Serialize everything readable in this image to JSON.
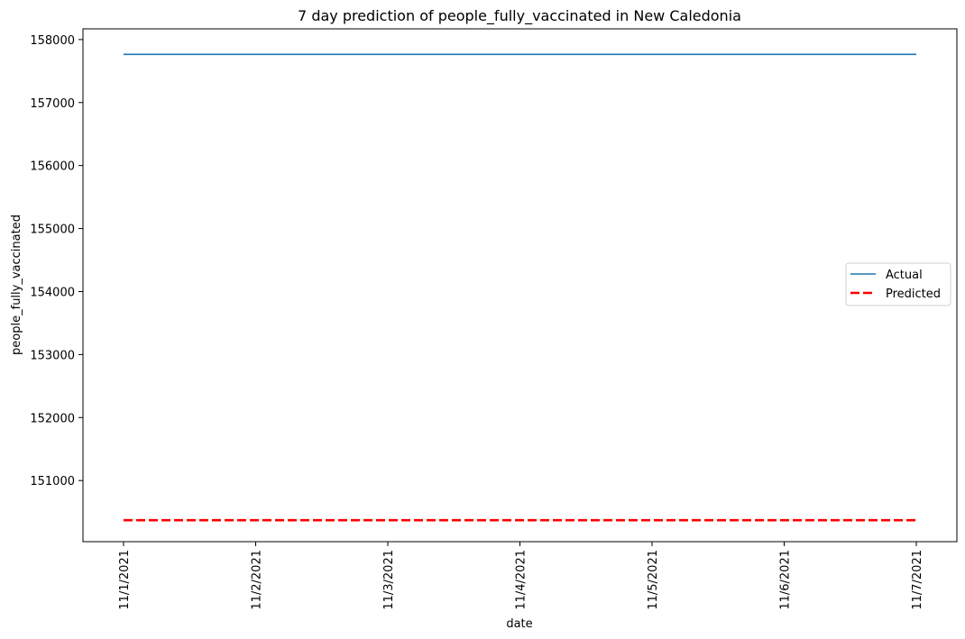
{
  "chart_data": {
    "type": "line",
    "title": "7 day prediction of people_fully_vaccinated in New Caledonia",
    "xlabel": "date",
    "ylabel": "people_fully_vaccinated",
    "x": [
      "11/1/2021",
      "11/2/2021",
      "11/3/2021",
      "11/4/2021",
      "11/5/2021",
      "11/6/2021",
      "11/7/2021"
    ],
    "y_ticks": [
      151000,
      152000,
      153000,
      154000,
      155000,
      156000,
      157000,
      158000
    ],
    "ylim": [
      150030,
      158170
    ],
    "grid": false,
    "legend_position": "center-right",
    "series": [
      {
        "name": "Actual",
        "color": "#1f77b4",
        "style": "solid",
        "values": [
          157765,
          157765,
          157765,
          157765,
          157765,
          157765,
          157765
        ]
      },
      {
        "name": "Predicted",
        "color": "#ff0000",
        "style": "dashed",
        "values": [
          150370,
          150370,
          150370,
          150370,
          150370,
          150370,
          150370
        ]
      }
    ]
  }
}
